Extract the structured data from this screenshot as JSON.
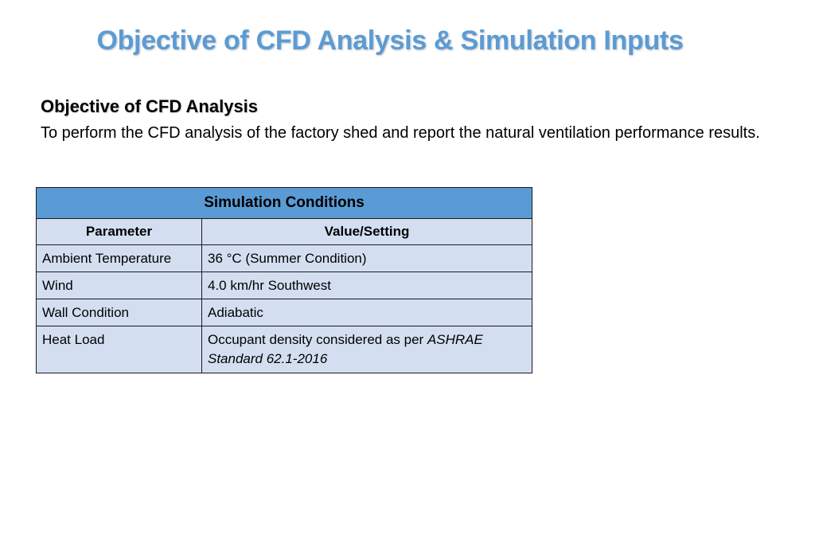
{
  "title": "Objective of CFD Analysis & Simulation Inputs",
  "objective": {
    "heading": "Objective of CFD Analysis",
    "body": "To perform the CFD analysis of the factory shed and report the natural ventilation performance results."
  },
  "table": {
    "caption": "Simulation Conditions",
    "headers": [
      "Parameter",
      "Value/Setting"
    ],
    "rows": [
      {
        "parameter": "Ambient Temperature",
        "value": "36 °C (Summer Condition)"
      },
      {
        "parameter": "Wind",
        "value": "4.0 km/hr Southwest"
      },
      {
        "parameter": "Wall Condition",
        "value": "Adiabatic"
      },
      {
        "parameter": "Heat Load",
        "value_prefix": "Occupant density considered as per ",
        "value_emphasis": "ASHRAE Standard 62.1-2016"
      }
    ]
  },
  "colors": {
    "title": "#5b9bd5",
    "table_header": "#5b9bd5",
    "table_cell": "#d3dff1"
  }
}
